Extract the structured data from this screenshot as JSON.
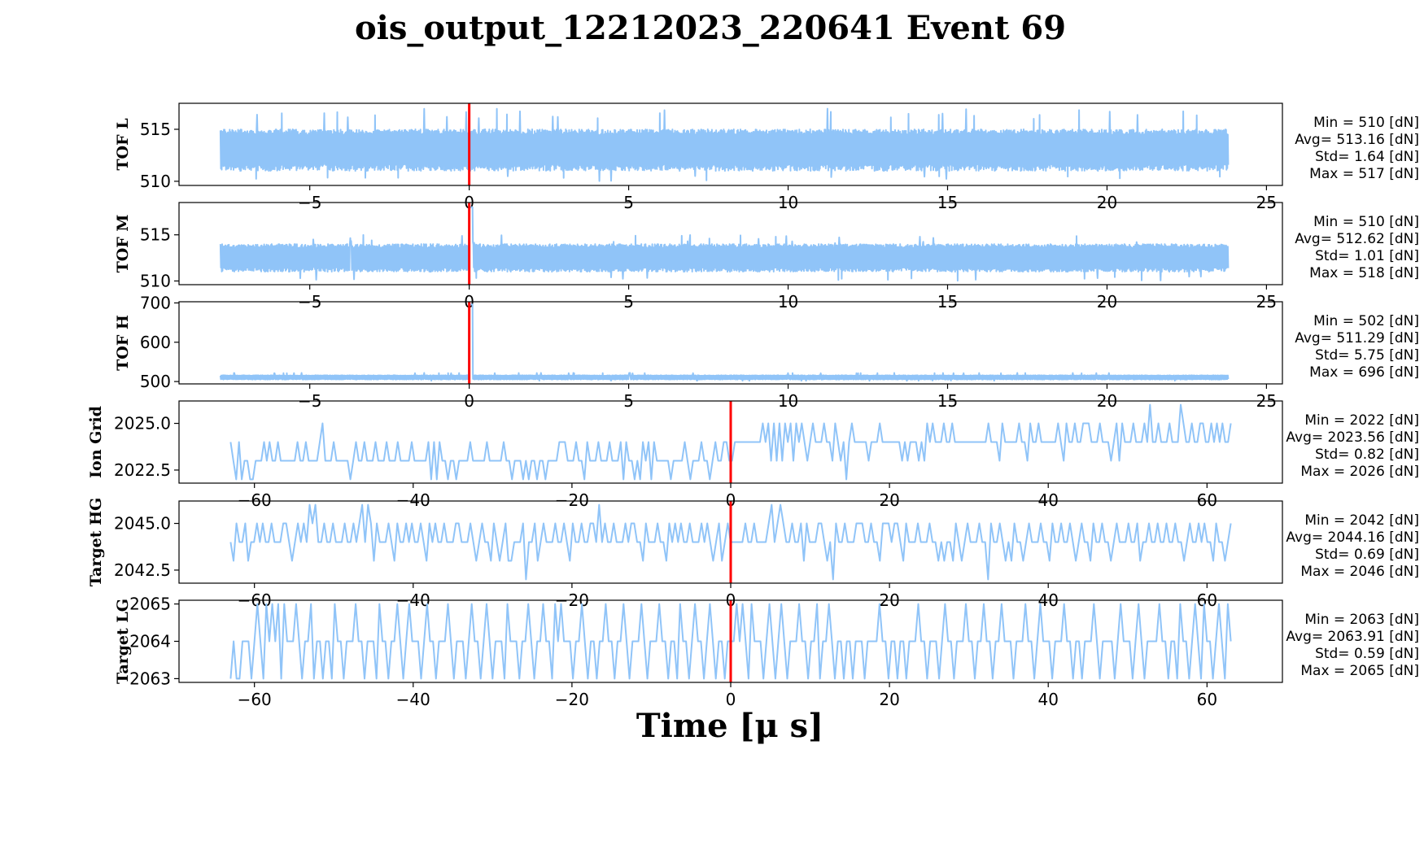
{
  "title": "ois_output_12212023_220641 Event 69",
  "xlabel": "Time [μ s]",
  "colors": {
    "trace": "#90c4f8",
    "marker": "#ff0000",
    "axes": "#000000"
  },
  "chart_data": [
    {
      "type": "line",
      "name": "TOF L",
      "ylabel": "TOF L",
      "xlim": [
        -9.1,
        25.5
      ],
      "ylim": [
        509.6,
        517.5
      ],
      "xticks": [
        -5,
        0,
        5,
        10,
        15,
        20,
        25
      ],
      "xtick_labels": [
        "−5",
        "0",
        "5",
        "10",
        "15",
        "20",
        "25"
      ],
      "yticks": [
        510,
        515
      ],
      "ytick_labels": [
        "510",
        "515"
      ],
      "x_range": [
        -7.8,
        23.8
      ],
      "noise": {
        "base": 513.2,
        "min": 511,
        "max": 515,
        "spike_low": 510,
        "spike_high": 517
      },
      "marker_x": 0,
      "stats": [
        "Min = 510 [dN]",
        "Avg= 513.16 [dN]",
        "Std= 1.64 [dN]",
        "Max = 517 [dN]"
      ]
    },
    {
      "type": "line",
      "name": "TOF M",
      "ylabel": "TOF M",
      "xlim": [
        -9.1,
        25.5
      ],
      "ylim": [
        509.6,
        518.5
      ],
      "xticks": [
        -5,
        0,
        5,
        10,
        15,
        20,
        25
      ],
      "xtick_labels": [
        "−5",
        "0",
        "5",
        "10",
        "15",
        "20",
        "25"
      ],
      "yticks": [
        510,
        515
      ],
      "ytick_labels": [
        "510",
        "515"
      ],
      "x_range": [
        -7.8,
        23.8
      ],
      "noise": {
        "base": 512.6,
        "min": 511,
        "max": 514,
        "spike_low": 510,
        "spike_high": 515
      },
      "peak": {
        "x": 0.05,
        "y": 518
      },
      "marker_x": 0,
      "stats": [
        "Min = 510 [dN]",
        "Avg= 512.62 [dN]",
        "Std= 1.01 [dN]",
        "Max = 518 [dN]"
      ]
    },
    {
      "type": "line",
      "name": "TOF H",
      "ylabel": "TOF H",
      "xlim": [
        -9.1,
        25.5
      ],
      "ylim": [
        494,
        703
      ],
      "xticks": [
        -5,
        0,
        5,
        10,
        15,
        20,
        25
      ],
      "xtick_labels": [
        "−5",
        "0",
        "5",
        "10",
        "15",
        "20",
        "25"
      ],
      "yticks": [
        500,
        600,
        700
      ],
      "ytick_labels": [
        "500",
        "600",
        "700"
      ],
      "x_range": [
        -7.8,
        23.8
      ],
      "noise": {
        "base": 511.3,
        "min": 505,
        "max": 516,
        "spike_low": 502,
        "spike_high": 522
      },
      "peak": {
        "x": 0.05,
        "y": 696
      },
      "marker_x": 0,
      "stats": [
        "Min = 502 [dN]",
        "Avg= 511.29 [dN]",
        "Std= 5.75 [dN]",
        "Max = 696 [dN]"
      ]
    },
    {
      "type": "line",
      "name": "Ion Grid",
      "ylabel": "Ion Grid",
      "xlim": [
        -69.5,
        69.5
      ],
      "ylim": [
        2021.8,
        2026.2
      ],
      "xticks": [
        -60,
        -40,
        -20,
        0,
        20,
        40,
        60
      ],
      "xtick_labels": [
        "−60",
        "−40",
        "−20",
        "0",
        "20",
        "40",
        "60"
      ],
      "yticks": [
        2022.5,
        2025.0
      ],
      "ytick_labels": [
        "2022.5",
        "2025.0"
      ],
      "x_range": [
        -63,
        63
      ],
      "values": [
        2024,
        2023,
        2022,
        2024,
        2022,
        2023,
        2023,
        2022,
        2022,
        2023,
        2023,
        2023,
        2024,
        2023,
        2024,
        2023,
        2023,
        2024,
        2023,
        2023,
        2023,
        2023,
        2023,
        2023,
        2024,
        2023,
        2023,
        2024,
        2023,
        2023,
        2023,
        2023,
        2024,
        2025,
        2023,
        2023,
        2023,
        2024,
        2023,
        2023,
        2023,
        2023,
        2023,
        2022,
        2023,
        2024,
        2023,
        2023,
        2024,
        2023,
        2023,
        2023,
        2024,
        2023,
        2023,
        2023,
        2024,
        2023,
        2023,
        2023,
        2024,
        2023,
        2023,
        2023,
        2023,
        2024,
        2023,
        2023,
        2023,
        2023,
        2023,
        2024,
        2022,
        2024,
        2022,
        2024,
        2023,
        2023,
        2022,
        2023,
        2023,
        2022,
        2023,
        2023,
        2023,
        2023,
        2024,
        2023,
        2023,
        2023,
        2023,
        2023,
        2024,
        2023,
        2023,
        2023,
        2023,
        2023,
        2024,
        2023,
        2023,
        2022,
        2023,
        2023,
        2023,
        2022,
        2023,
        2022,
        2023,
        2023,
        2022,
        2023,
        2023,
        2022,
        2023,
        2023,
        2023,
        2023,
        2024,
        2024,
        2024,
        2023,
        2023,
        2023,
        2024,
        2023,
        2023,
        2022,
        2024,
        2023,
        2023,
        2023,
        2024,
        2023,
        2023,
        2023,
        2024,
        2023,
        2023,
        2023,
        2024,
        2022,
        2024,
        2023,
        2023,
        2022,
        2023,
        2022,
        2024,
        2023,
        2024,
        2022,
        2024,
        2023,
        2023,
        2023,
        2023,
        2023,
        2022,
        2023,
        2023,
        2023,
        2023,
        2024,
        2023,
        2022,
        2023,
        2023,
        2023,
        2024,
        2023,
        2023,
        2022,
        2023,
        2024,
        2023,
        2023,
        2024,
        2024,
        2023,
        2023,
        2024,
        2024,
        2024,
        2024,
        2024,
        2024,
        2024,
        2024,
        2024,
        2024,
        2025,
        2024,
        2025,
        2023,
        2025,
        2023,
        2025,
        2023,
        2025,
        2024,
        2025,
        2023,
        2025,
        2024,
        2025,
        2024,
        2023,
        2024,
        2025,
        2024,
        2024,
        2024,
        2025,
        2024,
        2024,
        2023,
        2025,
        2024,
        2023,
        2024,
        2022,
        2024,
        2025,
        2024,
        2024,
        2024,
        2024,
        2024,
        2023,
        2024,
        2024,
        2024,
        2025,
        2024,
        2024,
        2024,
        2024,
        2024,
        2024,
        2024,
        2023,
        2024,
        2023,
        2024,
        2024,
        2024,
        2023,
        2024,
        2023,
        2025,
        2024,
        2025,
        2024,
        2024,
        2024,
        2025,
        2024,
        2024,
        2025,
        2024,
        2024,
        2024,
        2024,
        2024,
        2024,
        2024,
        2024,
        2024,
        2024,
        2024,
        2024,
        2025,
        2024,
        2024,
        2024,
        2023,
        2025,
        2024,
        2024,
        2024,
        2024,
        2024,
        2025,
        2024,
        2024,
        2023,
        2025,
        2024,
        2024,
        2025,
        2024,
        2024,
        2024,
        2024,
        2024,
        2024,
        2025,
        2024,
        2023,
        2025,
        2024,
        2024,
        2025,
        2024,
        2024,
        2025,
        2025,
        2025,
        2024,
        2024,
        2024,
        2025,
        2024,
        2024,
        2024,
        2023,
        2024,
        2025,
        2023,
        2025,
        2024,
        2024,
        2024,
        2025,
        2024,
        2024,
        2024,
        2025,
        2024,
        2026,
        2024,
        2024,
        2025,
        2024,
        2024,
        2024,
        2025,
        2024,
        2024,
        2024,
        2026,
        2025,
        2024,
        2024,
        2025,
        2024,
        2024,
        2025,
        2025,
        2024,
        2024,
        2025,
        2024,
        2025,
        2024,
        2025,
        2024,
        2024,
        2025
      ],
      "marker_x": 0,
      "stats": [
        "Min = 2022 [dN]",
        "Avg= 2023.56 [dN]",
        "Std= 0.82 [dN]",
        "Max = 2026 [dN]"
      ]
    },
    {
      "type": "line",
      "name": "Target HG",
      "ylabel": "Target HG",
      "xlim": [
        -69.5,
        69.5
      ],
      "ylim": [
        2041.8,
        2046.2
      ],
      "xticks": [
        -60,
        -40,
        -20,
        0,
        20,
        40,
        60
      ],
      "xtick_labels": [
        "−60",
        "−40",
        "−20",
        "0",
        "20",
        "40",
        "60"
      ],
      "yticks": [
        2042.5,
        2045.0
      ],
      "ytick_labels": [
        "2042.5",
        "2045.0"
      ],
      "x_range": [
        -63,
        63
      ],
      "values": [
        2044,
        2043,
        2045,
        2044,
        2044,
        2045,
        2043,
        2044,
        2044,
        2045,
        2044,
        2045,
        2044,
        2044,
        2045,
        2044,
        2044,
        2044,
        2045,
        2045,
        2044,
        2043,
        2044,
        2045,
        2044,
        2045,
        2044,
        2046,
        2045,
        2046,
        2044,
        2044,
        2045,
        2044,
        2044,
        2045,
        2044,
        2044,
        2044,
        2045,
        2044,
        2044,
        2045,
        2044,
        2045,
        2046,
        2044,
        2046,
        2045,
        2043,
        2045,
        2044,
        2044,
        2044,
        2045,
        2044,
        2043,
        2045,
        2044,
        2044,
        2045,
        2044,
        2045,
        2044,
        2044,
        2045,
        2044,
        2043,
        2045,
        2044,
        2045,
        2044,
        2044,
        2045,
        2044,
        2044,
        2044,
        2045,
        2045,
        2044,
        2044,
        2044,
        2045,
        2044,
        2043,
        2044,
        2045,
        2044,
        2044,
        2043,
        2045,
        2044,
        2043,
        2044,
        2045,
        2043,
        2043,
        2044,
        2044,
        2044,
        2045,
        2042,
        2044,
        2044,
        2045,
        2043,
        2044,
        2045,
        2044,
        2044,
        2044,
        2045,
        2044,
        2044,
        2045,
        2044,
        2043,
        2045,
        2044,
        2044,
        2045,
        2044,
        2044,
        2045,
        2045,
        2044,
        2046,
        2044,
        2045,
        2044,
        2044,
        2045,
        2044,
        2044,
        2044,
        2045,
        2044,
        2045,
        2045,
        2044,
        2044,
        2043,
        2045,
        2044,
        2044,
        2044,
        2045,
        2044,
        2044,
        2043,
        2045,
        2044,
        2045,
        2044,
        2045,
        2044,
        2044,
        2045,
        2044,
        2044,
        2044,
        2045,
        2044,
        2045,
        2044,
        2043,
        2044,
        2045,
        2043,
        2044,
        2045,
        2044,
        2044,
        2044,
        2044,
        2044,
        2045,
        2044,
        2044,
        2045,
        2044,
        2044,
        2044,
        2044,
        2045,
        2046,
        2044,
        2045,
        2046,
        2045,
        2044,
        2044,
        2045,
        2044,
        2044,
        2045,
        2043,
        2045,
        2044,
        2044,
        2044,
        2045,
        2045,
        2044,
        2043,
        2044,
        2042,
        2045,
        2044,
        2044,
        2045,
        2044,
        2044,
        2044,
        2045,
        2045,
        2045,
        2044,
        2044,
        2045,
        2044,
        2044,
        2043,
        2045,
        2045,
        2045,
        2044,
        2045,
        2045,
        2044,
        2043,
        2045,
        2044,
        2044,
        2044,
        2045,
        2044,
        2044,
        2044,
        2045,
        2044,
        2044,
        2043,
        2044,
        2043,
        2044,
        2044,
        2043,
        2045,
        2044,
        2043,
        2044,
        2045,
        2044,
        2044,
        2044,
        2045,
        2044,
        2044,
        2042,
        2045,
        2044,
        2044,
        2045,
        2044,
        2043,
        2044,
        2043,
        2045,
        2044,
        2044,
        2043,
        2044,
        2045,
        2044,
        2044,
        2044,
        2045,
        2044,
        2044,
        2043,
        2045,
        2044,
        2044,
        2045,
        2044,
        2044,
        2045,
        2044,
        2043,
        2044,
        2045,
        2044,
        2044,
        2043,
        2045,
        2044,
        2044,
        2045,
        2044,
        2044,
        2043,
        2044,
        2045,
        2044,
        2044,
        2044,
        2045,
        2044,
        2044,
        2045,
        2043,
        2044,
        2044,
        2045,
        2044,
        2044,
        2045,
        2044,
        2044,
        2045,
        2044,
        2044,
        2045,
        2044,
        2044,
        2043,
        2044,
        2045,
        2044,
        2044,
        2045,
        2044,
        2045,
        2044,
        2044,
        2043,
        2045,
        2044,
        2044,
        2043,
        2044,
        2045
      ],
      "marker_x": 0,
      "stats": [
        "Min = 2042 [dN]",
        "Avg= 2044.16 [dN]",
        "Std= 0.69 [dN]",
        "Max = 2046 [dN]"
      ]
    },
    {
      "type": "line",
      "name": "Target LG",
      "ylabel": "Target LG",
      "xlim": [
        -69.5,
        69.5
      ],
      "ylim": [
        2062.9,
        2065.1
      ],
      "xticks": [
        -60,
        -40,
        -20,
        0,
        20,
        40,
        60
      ],
      "xtick_labels": [
        "−60",
        "−40",
        "−20",
        "0",
        "20",
        "40",
        "60"
      ],
      "yticks": [
        2063,
        2064,
        2065
      ],
      "ytick_labels": [
        "2063",
        "2064",
        "2065"
      ],
      "x_range": [
        -63,
        63
      ],
      "values": [
        2063,
        2064,
        2063,
        2063,
        2064,
        2064,
        2064,
        2063,
        2064,
        2065,
        2064,
        2063,
        2065,
        2064,
        2065,
        2064,
        2065,
        2063,
        2065,
        2064,
        2064,
        2064,
        2065,
        2064,
        2063,
        2064,
        2064,
        2065,
        2063,
        2064,
        2064,
        2063,
        2064,
        2064,
        2063,
        2065,
        2064,
        2064,
        2063,
        2064,
        2064,
        2064,
        2065,
        2064,
        2064,
        2063,
        2064,
        2064,
        2064,
        2063,
        2065,
        2064,
        2064,
        2063,
        2064,
        2064,
        2065,
        2064,
        2063,
        2064,
        2065,
        2064,
        2064,
        2064,
        2063,
        2064,
        2065,
        2064,
        2064,
        2063,
        2064,
        2064,
        2064,
        2065,
        2064,
        2063,
        2064,
        2064,
        2064,
        2063,
        2064,
        2065,
        2064,
        2064,
        2063,
        2064,
        2065,
        2064,
        2063,
        2064,
        2064,
        2064,
        2063,
        2065,
        2064,
        2064,
        2064,
        2063,
        2064,
        2064,
        2065,
        2064,
        2063,
        2064,
        2064,
        2065,
        2064,
        2064,
        2063,
        2065,
        2064,
        2065,
        2064,
        2064,
        2064,
        2063,
        2064,
        2064,
        2065,
        2064,
        2063,
        2064,
        2064,
        2063,
        2064,
        2064,
        2065,
        2064,
        2064,
        2063,
        2064,
        2064,
        2065,
        2064,
        2063,
        2064,
        2064,
        2064,
        2065,
        2064,
        2063,
        2064,
        2064,
        2064,
        2065,
        2064,
        2064,
        2063,
        2064,
        2064,
        2063,
        2065,
        2064,
        2064,
        2063,
        2064,
        2065,
        2064,
        2064,
        2063,
        2064,
        2065,
        2064,
        2063,
        2064,
        2064,
        2063,
        2064,
        2064,
        2064,
        2065,
        2064,
        2065,
        2064,
        2063,
        2065,
        2064,
        2064,
        2064,
        2063,
        2064,
        2065,
        2064,
        2063,
        2064,
        2065,
        2064,
        2063,
        2064,
        2064,
        2064,
        2065,
        2064,
        2064,
        2063,
        2064,
        2064,
        2065,
        2063,
        2064,
        2064,
        2065,
        2064,
        2063,
        2064,
        2064,
        2063,
        2064,
        2064,
        2063,
        2064,
        2064,
        2064,
        2063,
        2064,
        2064,
        2064,
        2064,
        2065,
        2064,
        2064,
        2063,
        2064,
        2064,
        2063,
        2064,
        2064,
        2063,
        2064,
        2064,
        2064,
        2065,
        2064,
        2064,
        2063,
        2064,
        2064,
        2064,
        2063,
        2064,
        2065,
        2064,
        2064,
        2063,
        2064,
        2064,
        2064,
        2065,
        2064,
        2064,
        2063,
        2064,
        2064,
        2065,
        2064,
        2064,
        2063,
        2064,
        2064,
        2065,
        2064,
        2064,
        2064,
        2063,
        2064,
        2064,
        2064,
        2065,
        2064,
        2064,
        2063,
        2064,
        2065,
        2064,
        2064,
        2064,
        2063,
        2064,
        2064,
        2064,
        2065,
        2064,
        2064,
        2063,
        2064,
        2064,
        2063,
        2064,
        2064,
        2064,
        2065,
        2064,
        2063,
        2064,
        2064,
        2064,
        2064,
        2063,
        2064,
        2065,
        2064,
        2064,
        2064,
        2063,
        2064,
        2065,
        2064,
        2063,
        2064,
        2064,
        2064,
        2064,
        2065,
        2064,
        2064,
        2063,
        2064,
        2064,
        2063,
        2065,
        2064,
        2064,
        2063,
        2064,
        2065,
        2064,
        2063,
        2065,
        2064,
        2064,
        2063,
        2064,
        2065,
        2064,
        2063,
        2065,
        2064
      ],
      "marker_x": 0,
      "stats": [
        "Min = 2063 [dN]",
        "Avg= 2063.91 [dN]",
        "Std= 0.59 [dN]",
        "Max = 2065 [dN]"
      ]
    }
  ]
}
